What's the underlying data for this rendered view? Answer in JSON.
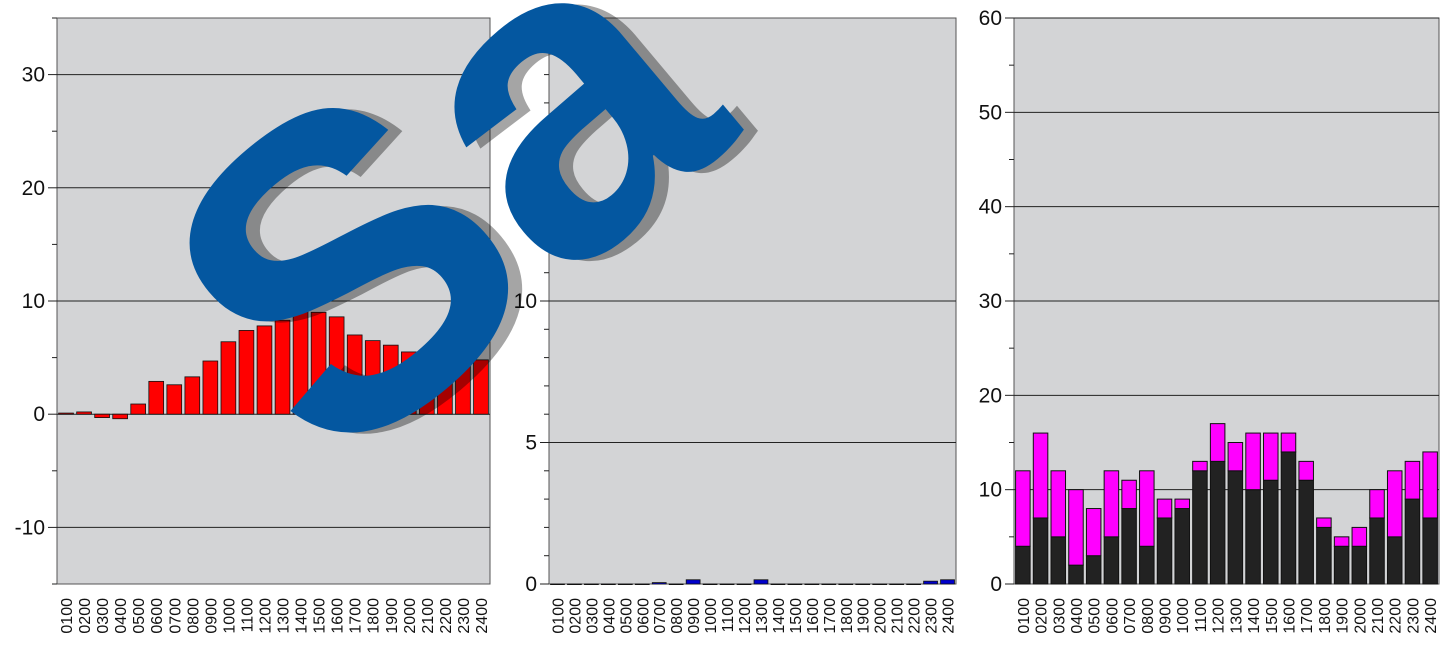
{
  "chart_data": [
    {
      "type": "bar",
      "categories": [
        "0100",
        "0200",
        "0300",
        "0400",
        "0500",
        "0600",
        "0700",
        "0800",
        "0900",
        "1000",
        "1100",
        "1200",
        "1300",
        "1400",
        "1500",
        "1600",
        "1700",
        "1800",
        "1900",
        "2000",
        "2100",
        "2200",
        "2300",
        "2400"
      ],
      "values": [
        0.1,
        0.2,
        -0.3,
        -0.4,
        0.9,
        2.9,
        2.6,
        3.3,
        4.7,
        6.4,
        7.4,
        7.8,
        8.3,
        9.3,
        9.0,
        8.6,
        7.0,
        6.5,
        6.1,
        5.5,
        4.8,
        4.9,
        5.1,
        4.8
      ],
      "colors": {
        "bar": "#ff0000",
        "plot_bg": "#d3d4d6"
      },
      "ylim": [
        -15,
        35
      ],
      "yticks": [
        -10,
        0,
        10,
        20,
        30
      ],
      "ytick_labels": [
        "-10",
        "0",
        "10",
        "20",
        "30"
      ],
      "grid": true,
      "title": "",
      "xlabel": "",
      "ylabel": ""
    },
    {
      "type": "bar",
      "categories": [
        "0100",
        "0200",
        "0300",
        "0400",
        "0500",
        "0600",
        "0700",
        "0800",
        "0900",
        "1000",
        "1100",
        "1200",
        "1300",
        "1400",
        "1500",
        "1600",
        "1700",
        "1800",
        "1900",
        "2000",
        "2100",
        "2200",
        "2300",
        "2400"
      ],
      "values": [
        0,
        0,
        0,
        0,
        0,
        0,
        0.05,
        0,
        0.15,
        0,
        0,
        0,
        0.15,
        0,
        0,
        0,
        0,
        0,
        0,
        0,
        0,
        0,
        0.1,
        0.15
      ],
      "colors": {
        "bar": "#0000cc",
        "plot_bg": "#d3d4d6"
      },
      "ylim": [
        0,
        20
      ],
      "yticks": [
        0,
        5,
        10
      ],
      "ytick_labels": [
        "0",
        "5",
        "10"
      ],
      "grid": true,
      "title": "",
      "xlabel": "",
      "ylabel": ""
    },
    {
      "type": "bar",
      "stacked": true,
      "categories": [
        "0100",
        "0200",
        "0300",
        "0400",
        "0500",
        "0600",
        "0700",
        "0800",
        "0900",
        "1000",
        "1100",
        "1200",
        "1300",
        "1400",
        "1500",
        "1600",
        "1700",
        "1800",
        "1900",
        "2000",
        "2100",
        "2200",
        "2300",
        "2400"
      ],
      "series": [
        {
          "values": [
            4,
            7,
            5,
            2,
            3,
            5,
            8,
            4,
            7,
            8,
            12,
            13,
            12,
            10,
            11,
            14,
            11,
            6,
            4,
            4,
            7,
            5,
            9,
            7
          ]
        },
        {
          "values": [
            8,
            9,
            7,
            8,
            5,
            7,
            3,
            8,
            2,
            1,
            1,
            4,
            3,
            6,
            5,
            2,
            2,
            1,
            1,
            2,
            3,
            7,
            4,
            7
          ]
        }
      ],
      "colors": {
        "series": [
          "#222222",
          "#ff00ff"
        ],
        "plot_bg": "#d3d4d6"
      },
      "ylim": [
        0,
        60
      ],
      "yticks": [
        0,
        10,
        20,
        30,
        40,
        50,
        60
      ],
      "ytick_labels": [
        "0",
        "10",
        "20",
        "30",
        "40",
        "50",
        "60"
      ],
      "grid": true,
      "title": "",
      "xlabel": "",
      "ylabel": ""
    }
  ],
  "watermark": {
    "text": "Sa",
    "color": "#0457a0"
  }
}
